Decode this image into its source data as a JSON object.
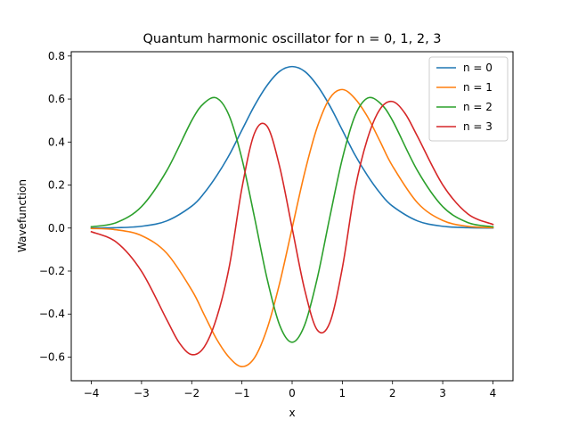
{
  "chart_data": {
    "type": "line",
    "title": "Quantum harmonic oscillator for n = 0, 1, 2, 3",
    "xlabel": "x",
    "ylabel": "Wavefunction",
    "xlim": [
      -4.4,
      4.4
    ],
    "ylim": [
      -0.71,
      0.82
    ],
    "xticks": [
      -4,
      -3,
      -2,
      -1,
      0,
      1,
      2,
      3,
      4
    ],
    "xtick_labels": [
      "−4",
      "−3",
      "−2",
      "−1",
      "0",
      "1",
      "2",
      "3",
      "4"
    ],
    "yticks": [
      -0.6,
      -0.4,
      -0.2,
      0.0,
      0.2,
      0.4,
      0.6,
      0.8
    ],
    "ytick_labels": [
      "−0.6",
      "−0.4",
      "−0.2",
      "0.0",
      "0.2",
      "0.4",
      "0.6",
      "0.8"
    ],
    "grid": false,
    "legend_position": "top-right",
    "series": [
      {
        "name": "n = 0",
        "color": "#1f77b4",
        "x": [
          -4,
          -3.5,
          -3,
          -2.5,
          -2,
          -1.75,
          -1.5,
          -1.25,
          -1,
          -0.75,
          -0.5,
          -0.25,
          0,
          0.25,
          0.5,
          0.75,
          1,
          1.25,
          1.5,
          1.75,
          2,
          2.5,
          3,
          3.5,
          4
        ],
        "values": [
          0.0003,
          0.0016,
          0.0083,
          0.033,
          0.1019,
          0.1632,
          0.2443,
          0.3409,
          0.4556,
          0.5689,
          0.6631,
          0.7285,
          0.7511,
          0.7285,
          0.6631,
          0.5689,
          0.4556,
          0.3409,
          0.2443,
          0.1632,
          0.1019,
          0.033,
          0.0083,
          0.0016,
          0.0003
        ]
      },
      {
        "name": "n = 1",
        "color": "#ff7f0e",
        "x": [
          -4,
          -3.5,
          -3,
          -2.5,
          -2,
          -1.75,
          -1.5,
          -1.25,
          -1,
          -0.75,
          -0.5,
          -0.25,
          0,
          0.25,
          0.5,
          0.75,
          1,
          1.25,
          1.5,
          1.75,
          2,
          2.5,
          3,
          3.5,
          4
        ],
        "values": [
          -0.0019,
          -0.008,
          -0.0352,
          -0.1166,
          -0.2883,
          -0.4039,
          -0.5183,
          -0.6027,
          -0.6443,
          -0.6034,
          -0.4689,
          -0.2576,
          0,
          0.2576,
          0.4689,
          0.6034,
          0.6443,
          0.6027,
          0.5183,
          0.4039,
          0.2883,
          0.1166,
          0.0352,
          0.008,
          0.0019
        ]
      },
      {
        "name": "n = 2",
        "color": "#2ca02c",
        "x": [
          -4,
          -3.5,
          -3,
          -2.5,
          -2,
          -1.75,
          -1.5,
          -1.25,
          -1,
          -0.75,
          -0.5,
          -0.25,
          0,
          0.25,
          0.5,
          0.75,
          1,
          1.25,
          1.5,
          1.75,
          2,
          2.5,
          3,
          3.5,
          4
        ],
        "values": [
          0.006,
          0.0255,
          0.0999,
          0.2657,
          0.5,
          0.5817,
          0.604,
          0.5202,
          0.3222,
          0.0503,
          -0.2344,
          -0.4507,
          -0.5311,
          -0.4507,
          -0.2344,
          0.0503,
          0.3222,
          0.5202,
          0.604,
          0.5817,
          0.5,
          0.2657,
          0.0999,
          0.0255,
          0.006
        ]
      },
      {
        "name": "n = 3",
        "color": "#d62728",
        "x": [
          -4,
          -3.5,
          -3,
          -2.5,
          -2.25,
          -2,
          -1.75,
          -1.5,
          -1.25,
          -1,
          -0.75,
          -0.5,
          -0.25,
          0,
          0.25,
          0.5,
          0.75,
          1,
          1.25,
          1.5,
          1.75,
          2,
          2.25,
          2.5,
          3,
          3.5,
          4
        ],
        "values": [
          -0.017,
          -0.0658,
          -0.2011,
          -0.425,
          -0.5329,
          -0.5884,
          -0.5525,
          -0.4147,
          -0.177,
          0.186,
          0.4406,
          0.4737,
          0.2869,
          0,
          -0.2869,
          -0.4737,
          -0.4406,
          -0.186,
          0.177,
          0.4147,
          0.5525,
          0.5884,
          0.5329,
          0.425,
          0.2011,
          0.0658,
          0.017
        ]
      }
    ]
  }
}
